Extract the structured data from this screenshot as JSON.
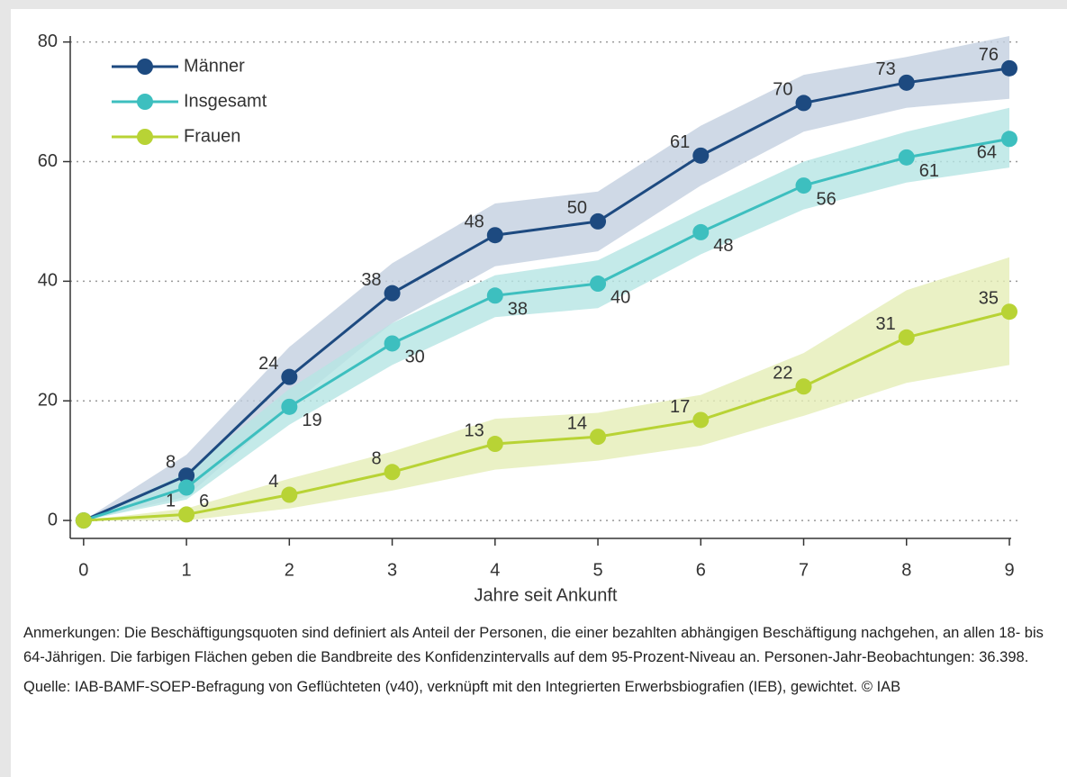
{
  "chart_data": {
    "type": "line",
    "x": [
      0,
      1,
      2,
      3,
      4,
      5,
      6,
      7,
      8,
      9
    ],
    "xlabel": "Jahre seit Ankunft",
    "xlim": [
      -0.13,
      9
    ],
    "xticks": [
      0,
      1,
      2,
      3,
      4,
      5,
      6,
      7,
      8,
      9
    ],
    "ylim": [
      -3,
      81
    ],
    "yticks": [
      0,
      20,
      40,
      60,
      80
    ],
    "grid": true,
    "legend": "upper left",
    "series": [
      {
        "name": "Männer",
        "color": "#1d4a80",
        "band_color": "#c3cfe0",
        "values": [
          0,
          7.5,
          24,
          38,
          47.7,
          50,
          61,
          69.8,
          73.2,
          75.6
        ],
        "value_labels": [
          null,
          "8",
          "24",
          "38",
          "48",
          "50",
          "61",
          "70",
          "73",
          "76"
        ],
        "upper": [
          0,
          11,
          29,
          43,
          53,
          55,
          66,
          74.5,
          77.5,
          81
        ],
        "lower": [
          0,
          4,
          19,
          33,
          42.5,
          45,
          56,
          65,
          69,
          70.5
        ]
      },
      {
        "name": "Insgesamt",
        "color": "#3dbfbf",
        "band_color": "#b5e5e4",
        "values": [
          0,
          5.5,
          19,
          29.6,
          37.6,
          39.6,
          48.2,
          56,
          60.7,
          63.8
        ],
        "value_labels": [
          null,
          "6",
          "19",
          "30",
          "38",
          "40",
          "48",
          "56",
          "61",
          "64"
        ],
        "upper": [
          0,
          8,
          22,
          33,
          41,
          43.5,
          52,
          60,
          65,
          69
        ],
        "lower": [
          0,
          3.5,
          16,
          26,
          34,
          35.5,
          44.5,
          52,
          56.5,
          59
        ]
      },
      {
        "name": "Frauen",
        "color": "#b8d335",
        "band_color": "#e5eeb7",
        "values": [
          0,
          1,
          4.3,
          8.1,
          12.8,
          14,
          16.8,
          22.4,
          30.6,
          34.9
        ],
        "value_labels": [
          null,
          "1",
          "4",
          "8",
          "13",
          "14",
          "17",
          "22",
          "31",
          "35"
        ],
        "upper": [
          0,
          2,
          7,
          11.5,
          17,
          18,
          21,
          28,
          38.5,
          44
        ],
        "lower": [
          0,
          0,
          2,
          5,
          8.5,
          10,
          12.5,
          17.5,
          23,
          26
        ]
      }
    ],
    "notes": [
      "Anmerkungen: Die Beschäftigungsquoten sind definiert als Anteil der Personen, die einer bezahlten abhängigen Beschäftigung nachgehen, an allen 18- bis 64-Jährigen. Die farbigen Flächen geben die Bandbreite des Konfidenzintervalls auf dem 95-Prozent-Niveau an. Personen-Jahr-Beobachtungen: 36.398.",
      "Quelle: IAB-BAMF-SOEP-Befragung von Geflüchteten (v40), verknüpft mit den Integrierten Erwerbsbiografien (IEB), gewichtet.  © IAB"
    ]
  }
}
